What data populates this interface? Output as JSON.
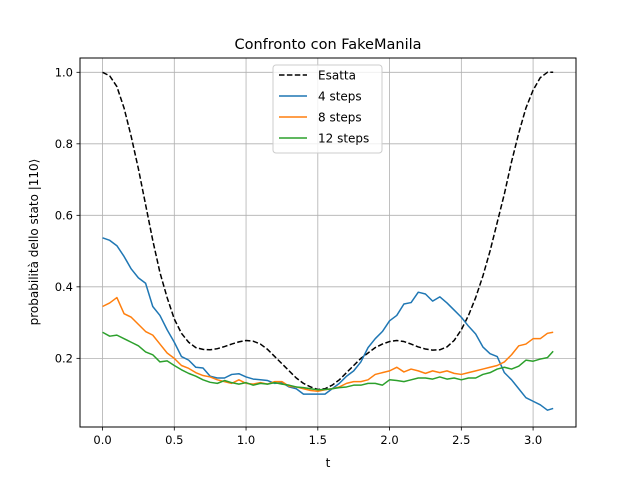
{
  "chart_data": {
    "type": "line",
    "title": "Confronto con FakeManila",
    "xlabel": "t",
    "ylabel": "probabilità dello stato |110⟩",
    "xlim": [
      -0.157,
      3.299
    ],
    "ylim": [
      0.008,
      1.04
    ],
    "xticks": [
      0.0,
      0.5,
      1.0,
      1.5,
      2.0,
      2.5,
      3.0
    ],
    "xtick_labels": [
      "0.0",
      "0.5",
      "1.0",
      "1.5",
      "2.0",
      "2.5",
      "3.0"
    ],
    "yticks": [
      0.2,
      0.4,
      0.6,
      0.8,
      1.0
    ],
    "ytick_labels": [
      "0.2",
      "0.4",
      "0.6",
      "0.8",
      "1.0"
    ],
    "grid": true,
    "legend": "top-center",
    "series": [
      {
        "name": "Esatta",
        "color": "#000000",
        "dashed": true,
        "x": [
          0.0,
          0.05,
          0.1,
          0.15,
          0.2,
          0.25,
          0.3,
          0.35,
          0.4,
          0.45,
          0.5,
          0.55,
          0.6,
          0.65,
          0.7,
          0.75,
          0.8,
          0.85,
          0.9,
          0.95,
          1.0,
          1.05,
          1.1,
          1.15,
          1.2,
          1.25,
          1.3,
          1.35,
          1.4,
          1.45,
          1.5,
          1.55,
          1.6,
          1.65,
          1.7,
          1.75,
          1.8,
          1.85,
          1.9,
          1.95,
          2.0,
          2.05,
          2.1,
          2.15,
          2.2,
          2.25,
          2.3,
          2.35,
          2.4,
          2.45,
          2.5,
          2.55,
          2.6,
          2.65,
          2.7,
          2.75,
          2.8,
          2.85,
          2.9,
          2.95,
          3.0,
          3.05,
          3.1,
          3.14
        ],
        "values": [
          1.0,
          0.99,
          0.96,
          0.9,
          0.82,
          0.73,
          0.63,
          0.53,
          0.44,
          0.37,
          0.31,
          0.27,
          0.245,
          0.23,
          0.225,
          0.224,
          0.227,
          0.233,
          0.24,
          0.246,
          0.25,
          0.248,
          0.24,
          0.225,
          0.205,
          0.185,
          0.165,
          0.145,
          0.13,
          0.12,
          0.113,
          0.115,
          0.125,
          0.14,
          0.16,
          0.18,
          0.2,
          0.215,
          0.23,
          0.24,
          0.247,
          0.25,
          0.247,
          0.24,
          0.232,
          0.226,
          0.223,
          0.224,
          0.232,
          0.25,
          0.28,
          0.32,
          0.37,
          0.43,
          0.5,
          0.58,
          0.66,
          0.75,
          0.83,
          0.9,
          0.95,
          0.985,
          1.0,
          1.0
        ]
      },
      {
        "name": "4 steps",
        "color": "#1f77b4",
        "dashed": false,
        "x": [
          0.0,
          0.05,
          0.1,
          0.15,
          0.2,
          0.25,
          0.3,
          0.35,
          0.4,
          0.45,
          0.5,
          0.55,
          0.6,
          0.65,
          0.7,
          0.75,
          0.8,
          0.85,
          0.9,
          0.95,
          1.0,
          1.05,
          1.1,
          1.15,
          1.2,
          1.25,
          1.3,
          1.35,
          1.4,
          1.45,
          1.5,
          1.55,
          1.6,
          1.65,
          1.7,
          1.75,
          1.8,
          1.85,
          1.9,
          1.95,
          2.0,
          2.05,
          2.1,
          2.15,
          2.2,
          2.25,
          2.3,
          2.35,
          2.4,
          2.45,
          2.5,
          2.55,
          2.6,
          2.65,
          2.7,
          2.75,
          2.8,
          2.85,
          2.9,
          2.95,
          3.0,
          3.05,
          3.1,
          3.14
        ],
        "values": [
          0.537,
          0.53,
          0.515,
          0.485,
          0.45,
          0.425,
          0.41,
          0.345,
          0.32,
          0.28,
          0.245,
          0.205,
          0.195,
          0.175,
          0.173,
          0.15,
          0.145,
          0.145,
          0.155,
          0.157,
          0.148,
          0.142,
          0.14,
          0.138,
          0.13,
          0.132,
          0.12,
          0.115,
          0.1,
          0.1,
          0.1,
          0.1,
          0.115,
          0.13,
          0.15,
          0.165,
          0.19,
          0.23,
          0.255,
          0.275,
          0.305,
          0.32,
          0.352,
          0.356,
          0.385,
          0.38,
          0.36,
          0.372,
          0.355,
          0.335,
          0.315,
          0.29,
          0.268,
          0.232,
          0.213,
          0.205,
          0.16,
          0.14,
          0.115,
          0.09,
          0.08,
          0.07,
          0.055,
          0.06
        ]
      },
      {
        "name": "8 steps",
        "color": "#ff7f0e",
        "dashed": false,
        "x": [
          0.0,
          0.05,
          0.1,
          0.15,
          0.2,
          0.25,
          0.3,
          0.35,
          0.4,
          0.45,
          0.5,
          0.55,
          0.6,
          0.65,
          0.7,
          0.75,
          0.8,
          0.85,
          0.9,
          0.95,
          1.0,
          1.05,
          1.1,
          1.15,
          1.2,
          1.25,
          1.3,
          1.35,
          1.4,
          1.45,
          1.5,
          1.55,
          1.6,
          1.65,
          1.7,
          1.75,
          1.8,
          1.85,
          1.9,
          1.95,
          2.0,
          2.05,
          2.1,
          2.15,
          2.2,
          2.25,
          2.3,
          2.35,
          2.4,
          2.45,
          2.5,
          2.55,
          2.6,
          2.65,
          2.7,
          2.75,
          2.8,
          2.85,
          2.9,
          2.95,
          3.0,
          3.05,
          3.1,
          3.14
        ],
        "values": [
          0.345,
          0.355,
          0.37,
          0.325,
          0.315,
          0.295,
          0.275,
          0.265,
          0.24,
          0.215,
          0.2,
          0.18,
          0.172,
          0.16,
          0.152,
          0.148,
          0.14,
          0.135,
          0.13,
          0.14,
          0.13,
          0.128,
          0.132,
          0.128,
          0.135,
          0.135,
          0.122,
          0.12,
          0.115,
          0.11,
          0.108,
          0.112,
          0.115,
          0.12,
          0.13,
          0.135,
          0.135,
          0.14,
          0.155,
          0.16,
          0.165,
          0.175,
          0.162,
          0.17,
          0.165,
          0.158,
          0.165,
          0.16,
          0.165,
          0.158,
          0.155,
          0.16,
          0.165,
          0.17,
          0.175,
          0.18,
          0.19,
          0.21,
          0.235,
          0.24,
          0.255,
          0.255,
          0.27,
          0.273
        ]
      },
      {
        "name": "12 steps",
        "color": "#2ca02c",
        "dashed": false,
        "x": [
          0.0,
          0.05,
          0.1,
          0.15,
          0.2,
          0.25,
          0.3,
          0.35,
          0.4,
          0.45,
          0.5,
          0.55,
          0.6,
          0.65,
          0.7,
          0.75,
          0.8,
          0.85,
          0.9,
          0.95,
          1.0,
          1.05,
          1.1,
          1.15,
          1.2,
          1.25,
          1.3,
          1.35,
          1.4,
          1.45,
          1.5,
          1.55,
          1.6,
          1.65,
          1.7,
          1.75,
          1.8,
          1.85,
          1.9,
          1.95,
          2.0,
          2.05,
          2.1,
          2.15,
          2.2,
          2.25,
          2.3,
          2.35,
          2.4,
          2.45,
          2.5,
          2.55,
          2.6,
          2.65,
          2.7,
          2.75,
          2.8,
          2.85,
          2.9,
          2.95,
          3.0,
          3.05,
          3.1,
          3.14
        ],
        "values": [
          0.273,
          0.262,
          0.265,
          0.255,
          0.245,
          0.235,
          0.218,
          0.21,
          0.19,
          0.193,
          0.18,
          0.168,
          0.158,
          0.15,
          0.14,
          0.133,
          0.13,
          0.138,
          0.132,
          0.128,
          0.132,
          0.125,
          0.13,
          0.128,
          0.132,
          0.128,
          0.125,
          0.12,
          0.118,
          0.115,
          0.112,
          0.113,
          0.115,
          0.118,
          0.12,
          0.125,
          0.125,
          0.13,
          0.13,
          0.125,
          0.14,
          0.138,
          0.135,
          0.14,
          0.145,
          0.145,
          0.142,
          0.148,
          0.142,
          0.145,
          0.14,
          0.145,
          0.145,
          0.155,
          0.16,
          0.17,
          0.175,
          0.17,
          0.178,
          0.195,
          0.192,
          0.198,
          0.202,
          0.22
        ]
      }
    ]
  }
}
